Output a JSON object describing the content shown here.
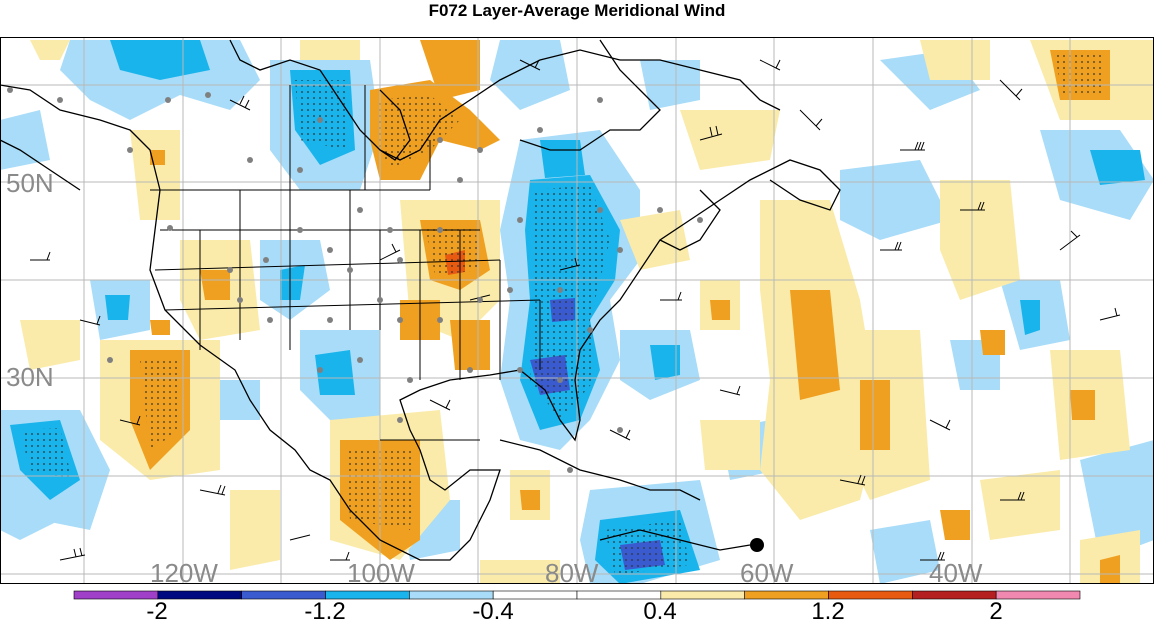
{
  "title": "F072 Layer-Average Meridional Wind",
  "latitude_labels": [
    "50N",
    "30N"
  ],
  "longitude_labels": [
    "120W",
    "100W",
    "80W",
    "60W",
    "40W"
  ],
  "colorbar": {
    "labels": [
      "-2",
      "-1.2",
      "-0.4",
      "0.4",
      "1.2",
      "2"
    ],
    "colors": [
      "#a040c8",
      "#000a80",
      "#3a5ad0",
      "#1ab4ec",
      "#a8dcf8",
      "#ffffff",
      "#ffffff",
      "#faebaa",
      "#f0a020",
      "#e85a10",
      "#b42020",
      "#f088b0"
    ]
  },
  "shading_colors": {
    "light_blue": "#a8dcf8",
    "blue": "#1ab4ec",
    "dark_blue": "#3a5ad0",
    "light_yellow": "#faebaa",
    "orange": "#f0a020",
    "red_orange": "#e85a10"
  },
  "legend_icons": [
    "wind-barb-icon",
    "station-dot-icon"
  ]
}
